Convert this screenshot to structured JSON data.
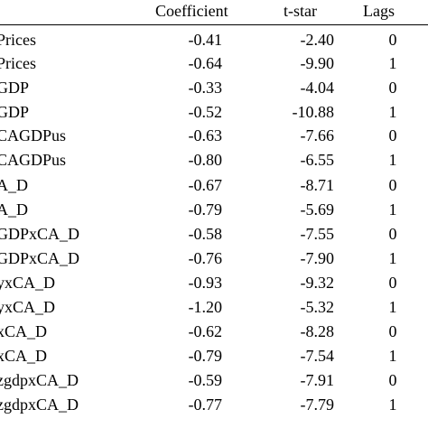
{
  "header": {
    "coefficient": "Coefficient",
    "tstar": "t-star",
    "lags": "Lags"
  },
  "rows": [
    {
      "variable": "Prices",
      "coefficient": "-0.41",
      "tstar": "-2.40",
      "lags": "0"
    },
    {
      "variable": "Prices",
      "coefficient": "-0.64",
      "tstar": "-9.90",
      "lags": "1"
    },
    {
      "variable": "GDP",
      "coefficient": "-0.33",
      "tstar": "-4.04",
      "lags": "0"
    },
    {
      "variable": "GDP",
      "coefficient": "-0.52",
      "tstar": "-10.88",
      "lags": "1"
    },
    {
      "variable": "CAGDPus",
      "coefficient": "-0.63",
      "tstar": "-7.66",
      "lags": "0"
    },
    {
      "variable": "CAGDPus",
      "coefficient": "-0.80",
      "tstar": "-6.55",
      "lags": "1"
    },
    {
      "variable": "A_D",
      "coefficient": "-0.67",
      "tstar": "-8.71",
      "lags": "0"
    },
    {
      "variable": "A_D",
      "coefficient": "-0.79",
      "tstar": "-5.69",
      "lags": "1"
    },
    {
      "variable": "GDPxCA_D",
      "coefficient": "-0.58",
      "tstar": "-7.55",
      "lags": "0"
    },
    {
      "variable": "GDPxCA_D",
      "coefficient": "-0.76",
      "tstar": "-7.90",
      "lags": "1"
    },
    {
      "variable": "yxCA_D",
      "coefficient": "-0.93",
      "tstar": "-9.32",
      "lags": "0"
    },
    {
      "variable": "yxCA_D",
      "coefficient": "-1.20",
      "tstar": "-5.32",
      "lags": "1"
    },
    {
      "variable": "xCA_D",
      "coefficient": "-0.62",
      "tstar": "-8.28",
      "lags": "0"
    },
    {
      "variable": "xCA_D",
      "coefficient": "-0.79",
      "tstar": "-7.54",
      "lags": "1"
    },
    {
      "variable": "zgdpxCA_D",
      "coefficient": "-0.59",
      "tstar": "-7.91",
      "lags": "0"
    },
    {
      "variable": "zgdpxCA_D",
      "coefficient": "-0.77",
      "tstar": "-7.79",
      "lags": "1"
    }
  ]
}
